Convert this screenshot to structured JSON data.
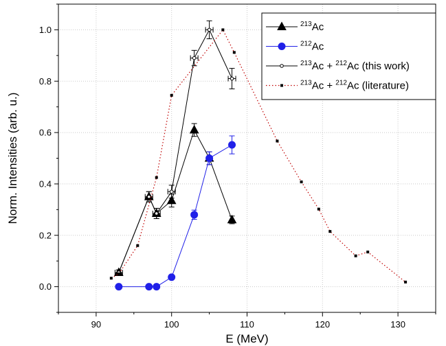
{
  "chart_data": {
    "type": "line",
    "xlabel": "E (MeV)",
    "ylabel": "Norm. Intensities (arb. u.)",
    "xlim": [
      85,
      135
    ],
    "ylim": [
      -0.1,
      1.1
    ],
    "x_ticks": [
      90,
      100,
      110,
      120,
      130
    ],
    "y_ticks": [
      0.0,
      0.2,
      0.4,
      0.6,
      0.8,
      1.0
    ],
    "x_tick_labels": [
      "90",
      "100",
      "110",
      "120",
      "130"
    ],
    "y_tick_labels": [
      "0.0",
      "0.2",
      "0.4",
      "0.6",
      "0.8",
      "1.0"
    ],
    "grid": true,
    "legend_position": "top-right",
    "series": [
      {
        "id": "ac213",
        "legend_sup": "213",
        "legend_text": "Ac",
        "color": "#000000",
        "marker": "triangle",
        "line": "solid",
        "x": [
          93,
          97,
          98,
          100,
          103,
          105,
          108
        ],
        "y": [
          0.055,
          0.35,
          0.285,
          0.335,
          0.61,
          0.5,
          0.26
        ],
        "yerr": [
          0.01,
          0.02,
          0.02,
          0.025,
          0.025,
          0.025,
          0.015
        ]
      },
      {
        "id": "ac212",
        "legend_sup": "212",
        "legend_text": "Ac",
        "color": "#2020e8",
        "marker": "circle",
        "line": "solid",
        "x": [
          93,
          97,
          98,
          100,
          103,
          105,
          108
        ],
        "y": [
          0.0,
          0.0,
          0.0,
          0.037,
          0.28,
          0.5,
          0.552
        ],
        "yerr": [
          0,
          0,
          0,
          0,
          0.018,
          0.025,
          0.035
        ]
      },
      {
        "id": "sum_this_work",
        "legend_sup1": "213",
        "legend_mid": "Ac + ",
        "legend_sup2": "212",
        "legend_text": "Ac (this work)",
        "color": "#000000",
        "marker": "open-circle",
        "line": "solid",
        "x": [
          93,
          97,
          98,
          100,
          103,
          105,
          108
        ],
        "y": [
          0.055,
          0.35,
          0.285,
          0.37,
          0.89,
          1.0,
          0.81
        ],
        "yerr": [
          0.01,
          0.02,
          0.02,
          0.025,
          0.03,
          0.035,
          0.04
        ],
        "xerr": [
          0.5,
          0.5,
          0.5,
          0.5,
          0.5,
          0.5,
          0.5
        ]
      },
      {
        "id": "sum_literature",
        "legend_sup1": "213",
        "legend_mid": "Ac + ",
        "legend_sup2": "212",
        "legend_text": "Ac (literature)",
        "color": "#c00000",
        "marker": "square",
        "line": "dotted",
        "x": [
          92,
          93,
          95.5,
          98,
          100,
          106.8,
          108.3,
          114,
          117.2,
          119.5,
          121,
          124.4,
          126,
          131
        ],
        "y": [
          0.033,
          0.05,
          0.16,
          0.425,
          0.745,
          1.0,
          0.912,
          0.567,
          0.408,
          0.302,
          0.215,
          0.12,
          0.135,
          0.018
        ]
      }
    ]
  }
}
